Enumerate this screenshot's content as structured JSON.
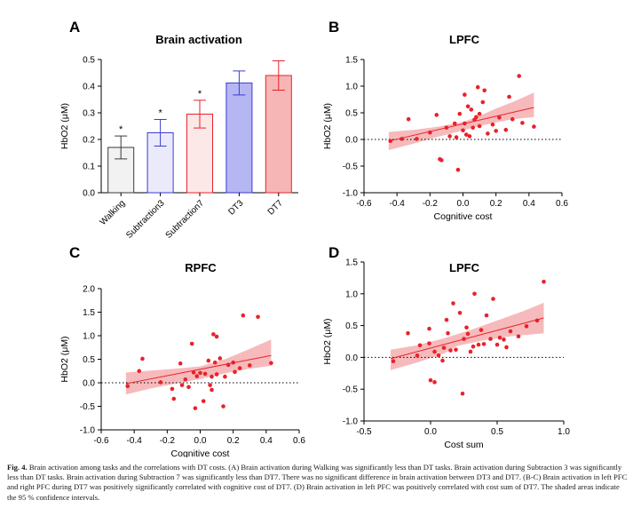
{
  "figure": {
    "label": "Fig. 4.",
    "caption": "Brain activation among tasks and the correlations with DT costs. (A) Brain activation during Walking was significantly less than DT tasks. Brain activation during Subtraction 3 was significantly less than DT tasks. Brain activation during Subtraction 7 was significantly less than DT7. There was no significant difference in brain activation between DT3 and DT7. (B-C) Brain activation in left PFC and right PFC during DT7 was positively significantly correlated with cognitive cost of DT7. (D) Brain activation in left PFC was positively correlated with cost sum of DT7. The shaded areas indicate the 95 % confidence intervals."
  },
  "colors": {
    "red": "#e8222a",
    "band": "#f4a3a6",
    "blue": "#3b3bd6"
  },
  "chart_data": [
    {
      "panel": "A",
      "type": "bar",
      "title": "Brain activation",
      "ylabel": "HbO2 (μM)",
      "xlabel": "",
      "ylim": [
        0,
        0.5
      ],
      "yticks": [
        "0.0",
        "0.1",
        "0.2",
        "0.3",
        "0.4",
        "0.5"
      ],
      "categories": [
        "Walking",
        "Subtraction3",
        "Subtraction7",
        "DT3",
        "DT7"
      ],
      "values": [
        0.17,
        0.225,
        0.295,
        0.412,
        0.44
      ],
      "errors": [
        0.043,
        0.05,
        0.052,
        0.045,
        0.055
      ],
      "significance": [
        "*",
        "*",
        "*",
        "",
        ""
      ],
      "fills": [
        "#f2f2f2",
        "#eaeafb",
        "#fde8e8",
        "#b6b6f3",
        "#f7b6b6"
      ],
      "strokes": [
        "#3a3a3a",
        "#3b3bd6",
        "#e8222a",
        "#3b3bd6",
        "#e8222a"
      ]
    },
    {
      "panel": "B",
      "type": "scatter",
      "title": "LPFC",
      "xlabel": "Cognitive cost",
      "ylabel": "HbO2 (μM)",
      "xlim": [
        -0.6,
        0.6
      ],
      "ylim": [
        -1.0,
        1.5
      ],
      "xticks": [
        "-0.6",
        "-0.4",
        "-0.2",
        "0.0",
        "0.2",
        "0.4",
        "0.6"
      ],
      "yticks": [
        "-1.0",
        "-0.5",
        "0.0",
        "0.5",
        "1.0",
        "1.5"
      ],
      "fit": {
        "x": [
          -0.45,
          0.43
        ],
        "y": [
          -0.03,
          0.6
        ]
      },
      "band_upper": [
        [
          -0.45,
          0.14
        ],
        [
          -0.3,
          0.18
        ],
        [
          -0.15,
          0.24
        ],
        [
          0.0,
          0.33
        ],
        [
          0.1,
          0.44
        ],
        [
          0.2,
          0.58
        ],
        [
          0.3,
          0.7
        ],
        [
          0.43,
          0.88
        ]
      ],
      "band_lower": [
        [
          -0.45,
          -0.2
        ],
        [
          -0.3,
          -0.08
        ],
        [
          -0.15,
          0.05
        ],
        [
          0.0,
          0.17
        ],
        [
          0.1,
          0.25
        ],
        [
          0.2,
          0.32
        ],
        [
          0.3,
          0.38
        ],
        [
          0.43,
          0.42
        ]
      ],
      "points": [
        [
          -0.44,
          -0.03
        ],
        [
          -0.37,
          0.01
        ],
        [
          -0.33,
          0.38
        ],
        [
          -0.28,
          0.01
        ],
        [
          -0.2,
          0.13
        ],
        [
          -0.16,
          0.46
        ],
        [
          -0.14,
          -0.37
        ],
        [
          -0.13,
          -0.39
        ],
        [
          -0.1,
          0.22
        ],
        [
          -0.08,
          0.06
        ],
        [
          -0.05,
          0.3
        ],
        [
          -0.04,
          0.04
        ],
        [
          -0.03,
          -0.57
        ],
        [
          -0.02,
          0.48
        ],
        [
          0.0,
          0.17
        ],
        [
          0.01,
          0.84
        ],
        [
          0.01,
          0.3
        ],
        [
          0.02,
          0.09
        ],
        [
          0.03,
          0.62
        ],
        [
          0.04,
          0.06
        ],
        [
          0.05,
          0.56
        ],
        [
          0.06,
          0.22
        ],
        [
          0.07,
          0.37
        ],
        [
          0.08,
          0.42
        ],
        [
          0.09,
          0.98
        ],
        [
          0.1,
          0.48
        ],
        [
          0.1,
          0.25
        ],
        [
          0.12,
          0.7
        ],
        [
          0.13,
          0.92
        ],
        [
          0.15,
          0.11
        ],
        [
          0.18,
          0.28
        ],
        [
          0.2,
          0.16
        ],
        [
          0.22,
          0.41
        ],
        [
          0.26,
          0.18
        ],
        [
          0.28,
          0.8
        ],
        [
          0.3,
          0.38
        ],
        [
          0.34,
          1.19
        ],
        [
          0.36,
          0.31
        ],
        [
          0.43,
          0.24
        ]
      ]
    },
    {
      "panel": "C",
      "type": "scatter",
      "title": "RPFC",
      "xlabel": "Cognitive cost",
      "ylabel": "HbO2 (μM)",
      "xlim": [
        -0.6,
        0.6
      ],
      "ylim": [
        -1.0,
        2.0
      ],
      "xticks": [
        "-0.6",
        "-0.4",
        "-0.2",
        "0.0",
        "0.2",
        "0.4",
        "0.6"
      ],
      "yticks": [
        "-1.0",
        "-0.5",
        "0.0",
        "0.5",
        "1.0",
        "1.5",
        "2.0"
      ],
      "fit": {
        "x": [
          -0.45,
          0.43
        ],
        "y": [
          -0.02,
          0.58
        ]
      },
      "band_upper": [
        [
          -0.45,
          0.22
        ],
        [
          -0.3,
          0.26
        ],
        [
          -0.15,
          0.3
        ],
        [
          0.0,
          0.35
        ],
        [
          0.15,
          0.5
        ],
        [
          0.3,
          0.72
        ],
        [
          0.43,
          0.92
        ]
      ],
      "band_lower": [
        [
          -0.45,
          -0.25
        ],
        [
          -0.3,
          -0.12
        ],
        [
          -0.15,
          -0.02
        ],
        [
          0.0,
          0.08
        ],
        [
          0.15,
          0.2
        ],
        [
          0.3,
          0.3
        ],
        [
          0.43,
          0.36
        ]
      ],
      "points": [
        [
          -0.44,
          -0.07
        ],
        [
          -0.37,
          0.25
        ],
        [
          -0.35,
          0.51
        ],
        [
          -0.24,
          0.01
        ],
        [
          -0.17,
          -0.13
        ],
        [
          -0.16,
          -0.34
        ],
        [
          -0.12,
          0.41
        ],
        [
          -0.11,
          -0.05
        ],
        [
          -0.09,
          0.07
        ],
        [
          -0.07,
          -0.09
        ],
        [
          -0.05,
          0.83
        ],
        [
          -0.04,
          0.22
        ],
        [
          -0.03,
          -0.54
        ],
        [
          -0.02,
          0.14
        ],
        [
          0.0,
          0.21
        ],
        [
          0.02,
          -0.39
        ],
        [
          0.03,
          0.19
        ],
        [
          0.05,
          0.47
        ],
        [
          0.06,
          -0.05
        ],
        [
          0.07,
          0.13
        ],
        [
          0.07,
          -0.15
        ],
        [
          0.08,
          1.03
        ],
        [
          0.09,
          0.43
        ],
        [
          0.1,
          0.98
        ],
        [
          0.1,
          0.18
        ],
        [
          0.12,
          0.52
        ],
        [
          0.14,
          -0.5
        ],
        [
          0.15,
          0.13
        ],
        [
          0.17,
          0.38
        ],
        [
          0.2,
          0.43
        ],
        [
          0.21,
          0.23
        ],
        [
          0.24,
          0.31
        ],
        [
          0.26,
          1.43
        ],
        [
          0.3,
          0.37
        ],
        [
          0.35,
          1.4
        ],
        [
          0.43,
          0.42
        ]
      ]
    },
    {
      "panel": "D",
      "type": "scatter",
      "title": "LPFC",
      "xlabel": "Cost sum",
      "ylabel": "HbO2 (μM)",
      "xlim": [
        -0.5,
        1.0
      ],
      "ylim": [
        -1.0,
        1.5
      ],
      "xticks": [
        "-0.5",
        "0.0",
        "0.5",
        "1.0"
      ],
      "yticks": [
        "-1.0",
        "-0.5",
        "0.0",
        "0.5",
        "1.0",
        "1.5"
      ],
      "fit": {
        "x": [
          -0.3,
          0.85
        ],
        "y": [
          -0.02,
          0.62
        ]
      },
      "band_upper": [
        [
          -0.3,
          0.12
        ],
        [
          -0.1,
          0.19
        ],
        [
          0.1,
          0.3
        ],
        [
          0.3,
          0.43
        ],
        [
          0.5,
          0.58
        ],
        [
          0.7,
          0.73
        ],
        [
          0.85,
          0.86
        ]
      ],
      "band_lower": [
        [
          -0.3,
          -0.2
        ],
        [
          -0.1,
          -0.08
        ],
        [
          0.1,
          0.06
        ],
        [
          0.2,
          0.18
        ],
        [
          0.4,
          0.27
        ],
        [
          0.6,
          0.33
        ],
        [
          0.85,
          0.38
        ]
      ],
      "points": [
        [
          -0.28,
          -0.06
        ],
        [
          -0.17,
          0.38
        ],
        [
          -0.1,
          0.03
        ],
        [
          -0.08,
          0.19
        ],
        [
          -0.01,
          0.45
        ],
        [
          -0.01,
          0.22
        ],
        [
          0.0,
          -0.36
        ],
        [
          0.03,
          -0.39
        ],
        [
          0.03,
          0.09
        ],
        [
          0.06,
          0.03
        ],
        [
          0.09,
          -0.05
        ],
        [
          0.1,
          0.15
        ],
        [
          0.12,
          0.59
        ],
        [
          0.13,
          0.38
        ],
        [
          0.15,
          0.11
        ],
        [
          0.17,
          0.85
        ],
        [
          0.19,
          0.12
        ],
        [
          0.22,
          0.7
        ],
        [
          0.24,
          -0.57
        ],
        [
          0.25,
          0.29
        ],
        [
          0.27,
          0.47
        ],
        [
          0.28,
          0.37
        ],
        [
          0.3,
          0.09
        ],
        [
          0.32,
          0.17
        ],
        [
          0.33,
          1.0
        ],
        [
          0.36,
          0.2
        ],
        [
          0.38,
          0.43
        ],
        [
          0.4,
          0.21
        ],
        [
          0.42,
          0.66
        ],
        [
          0.45,
          0.29
        ],
        [
          0.47,
          0.92
        ],
        [
          0.5,
          0.2
        ],
        [
          0.52,
          0.31
        ],
        [
          0.55,
          0.28
        ],
        [
          0.57,
          0.16
        ],
        [
          0.6,
          0.41
        ],
        [
          0.66,
          0.33
        ],
        [
          0.72,
          0.49
        ],
        [
          0.8,
          0.58
        ],
        [
          0.85,
          1.19
        ]
      ]
    }
  ]
}
